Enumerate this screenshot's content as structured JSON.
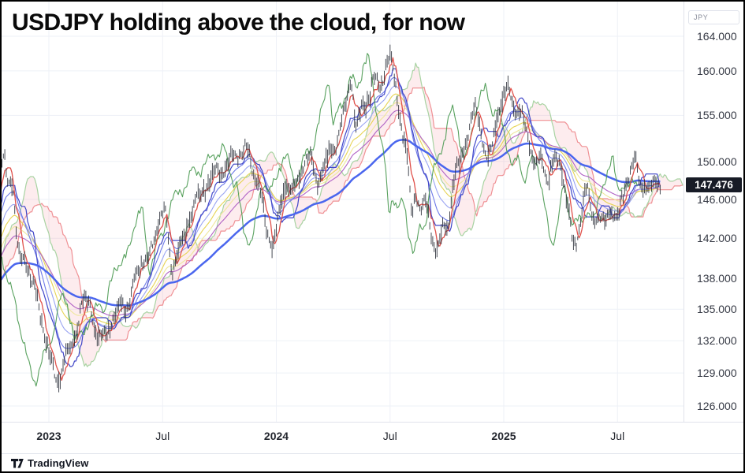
{
  "title": "USDJPY holding above the cloud, for now",
  "branding": {
    "logo_text": "TradingView"
  },
  "price_axis": {
    "unit_button_label": "JPY",
    "ticks": [
      "164.000",
      "160.000",
      "155.000",
      "150.000",
      "146.000",
      "142.000",
      "138.000",
      "135.000",
      "132.000",
      "129.000",
      "126.000"
    ],
    "tick_values": [
      164,
      160,
      155,
      150,
      146,
      142,
      138,
      135,
      132,
      129,
      126
    ],
    "last_price_label": "147.476",
    "badge_color": "#171b26"
  },
  "time_axis": {
    "ticks": [
      {
        "label": "2023",
        "months_from_jan2023": 0,
        "bold": true
      },
      {
        "label": "Jul",
        "months_from_jan2023": 6,
        "bold": false
      },
      {
        "label": "2024",
        "months_from_jan2023": 12,
        "bold": true
      },
      {
        "label": "Jul",
        "months_from_jan2023": 18,
        "bold": false
      },
      {
        "label": "2025",
        "months_from_jan2023": 24,
        "bold": true
      },
      {
        "label": "Jul",
        "months_from_jan2023": 30,
        "bold": false
      }
    ]
  },
  "chart_data": {
    "type": "line",
    "subtype": "ohlc-bars with Ichimoku cloud and moving-average ribbon, log price scale",
    "symbol": "USDJPY",
    "title": "USDJPY holding above the cloud, for now",
    "currency": "JPY",
    "last_price": 147.476,
    "y_axis": {
      "scale": "log",
      "tick_values": [
        164,
        160,
        155,
        150,
        146,
        142,
        138,
        135,
        132,
        129,
        126
      ],
      "range": [
        125.5,
        165.5
      ]
    },
    "x_axis": {
      "tick_labels": [
        "2023",
        "Jul",
        "2024",
        "Jul",
        "2025",
        "Jul"
      ],
      "range_months_from_jan2023": [
        -2.5,
        33.5
      ]
    },
    "price_path": {
      "comment_units": "t = months since Jan 2023 (negatives = late 2022 warm-up), close = approximate USDJPY price read from chart",
      "t": [
        -6,
        -5.5,
        -5,
        -4.5,
        -4,
        -3.5,
        -3,
        -2.5,
        -2.33,
        -2.2,
        -2,
        -1.83,
        -1.7,
        -1.5,
        -1.3,
        -1,
        -0.7,
        -0.5,
        -0.3,
        -0.1,
        0.17,
        0.5,
        0.83,
        1.17,
        1.5,
        1.83,
        2.17,
        2.4,
        2.6,
        2.83,
        3.17,
        3.5,
        3.83,
        4.17,
        4.5,
        4.83,
        5.17,
        5.5,
        5.83,
        6.17,
        6.5,
        6.83,
        7.17,
        7.5,
        7.83,
        8.17,
        8.5,
        8.83,
        9.17,
        9.5,
        9.83,
        10.17,
        10.5,
        10.83,
        11.17,
        11.5,
        11.9,
        12.17,
        12.5,
        12.83,
        13.17,
        13.5,
        13.83,
        14.17,
        14.5,
        14.83,
        15.17,
        15.5,
        15.83,
        15.97,
        16.2,
        16.5,
        16.85,
        17.15,
        17.5,
        17.8,
        18.08,
        18.3,
        18.6,
        18.95,
        19.15,
        19.35,
        19.6,
        19.9,
        20.2,
        20.5,
        20.8,
        21.05,
        21.35,
        21.65,
        22,
        22.3,
        22.5,
        22.8,
        23.05,
        23.35,
        23.65,
        24,
        24.3,
        24.6,
        25,
        25.35,
        25.65,
        26,
        26.3,
        26.65,
        27,
        27.35,
        27.7,
        28,
        28.37,
        28.7,
        29,
        29.35,
        29.65,
        30,
        30.35,
        30.65,
        31,
        31.15,
        31.45,
        31.75,
        32.05,
        32.3
      ],
      "close": [
        133.5,
        135,
        138.5,
        139,
        140,
        143.5,
        144.8,
        148.8,
        151.5,
        147.5,
        148.5,
        146.8,
        141,
        139.5,
        140.5,
        138,
        136.5,
        135.2,
        133,
        131.5,
        129.5,
        128,
        130.2,
        131.3,
        133.2,
        136.2,
        135.8,
        133.5,
        131.3,
        132.8,
        133.3,
        134,
        136.2,
        134.5,
        138,
        139.7,
        139.5,
        141.5,
        144.3,
        144.8,
        138.3,
        141,
        142.3,
        144.8,
        146.2,
        147,
        147.6,
        149.4,
        148.8,
        149.8,
        151,
        150.7,
        151.5,
        148.3,
        147,
        142.5,
        141.2,
        144.7,
        148.2,
        146.5,
        148,
        150.3,
        150.5,
        147.5,
        149.3,
        151.3,
        151.7,
        154.7,
        157.8,
        159.9,
        153,
        155.8,
        157,
        159.5,
        157.8,
        160.8,
        161.8,
        158,
        153.8,
        150,
        143.2,
        147,
        144.8,
        146,
        142.3,
        140.3,
        143.5,
        142.8,
        148,
        149.8,
        152,
        154.3,
        156.2,
        153.8,
        149.8,
        151.2,
        155,
        157.3,
        158.2,
        155.3,
        155.2,
        152,
        149.3,
        150.5,
        147.8,
        150.2,
        149.8,
        145.5,
        140.7,
        143.2,
        147.8,
        143.8,
        144.2,
        143.3,
        145.2,
        143.7,
        147,
        148.8,
        150.6,
        147.1,
        147.6,
        146.9,
        148.3,
        147.476
      ]
    },
    "indicators": [
      {
        "name": "price-bars",
        "style": "ohlc bars",
        "color": "#2e323c"
      },
      {
        "name": "fast-midline (tenkan-like)",
        "color": "#e0514b"
      },
      {
        "name": "base-midline (kijun-like)",
        "color": "#4046c8"
      },
      {
        "name": "ema-medium",
        "color": "#6d79e8"
      },
      {
        "name": "ema-slow",
        "color": "#9aa4f2"
      },
      {
        "name": "ema-yellow-1",
        "color": "#e6d352"
      },
      {
        "name": "ema-yellow-2",
        "color": "#efe79c"
      },
      {
        "name": "ema-magenta",
        "color": "#b163c5"
      },
      {
        "name": "sma-200-thick",
        "color": "#4a66ee"
      },
      {
        "name": "chikou lagging close",
        "color": "#4f9c55"
      },
      {
        "name": "senkou-A cloud edge",
        "color": "#a8d3a2"
      },
      {
        "name": "senkou-B cloud edge",
        "color": "#ef9094"
      },
      {
        "name": "ichimoku-cloud-fill",
        "color": "rgba(242,110,124,0.13)"
      }
    ],
    "grid_color": "#eef1f7",
    "legend": "none",
    "annotations": []
  }
}
